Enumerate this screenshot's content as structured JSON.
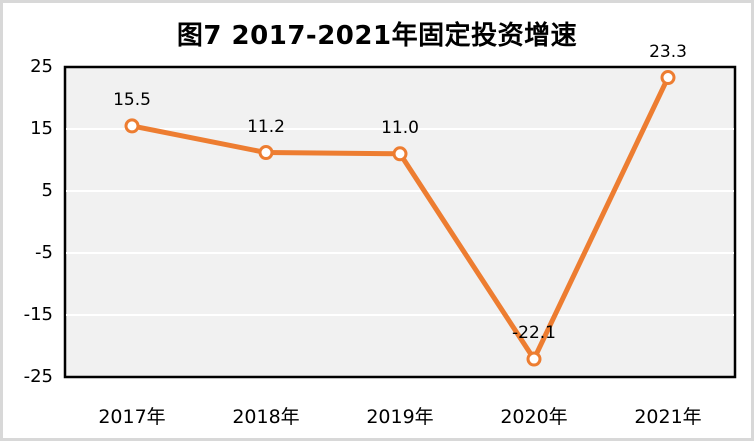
{
  "title": "图7 2017-2021年固定投资增速",
  "chart_data": {
    "type": "line",
    "title": "图7 2017-2021年固定投资增速",
    "categories": [
      "2017年",
      "2018年",
      "2019年",
      "2020年",
      "2021年"
    ],
    "values": [
      15.5,
      11.2,
      11.0,
      -22.1,
      23.3
    ],
    "point_labels": [
      "15.5",
      "11.2",
      "11.0",
      "-22.1",
      "23.3"
    ],
    "xlabel": "",
    "ylabel": "",
    "ylim": [
      -25,
      25
    ],
    "y_ticks": [
      "25",
      "15",
      "5",
      "-5",
      "-15",
      "-25"
    ],
    "y_tick_values": [
      25,
      15,
      5,
      -5,
      -15,
      -25
    ],
    "grid": "horizontal-white",
    "legend": "none",
    "series_name": "固定投资增速",
    "colors": {
      "line": "#ED7D31",
      "marker_fill": "#FFFFFF",
      "marker_stroke": "#ED7D31",
      "plot_bg": "#F1F1F1",
      "gridline": "#FFFFFF",
      "plot_border": "#000000",
      "text": "#000000",
      "frame_border": "#D8D8D8"
    }
  }
}
